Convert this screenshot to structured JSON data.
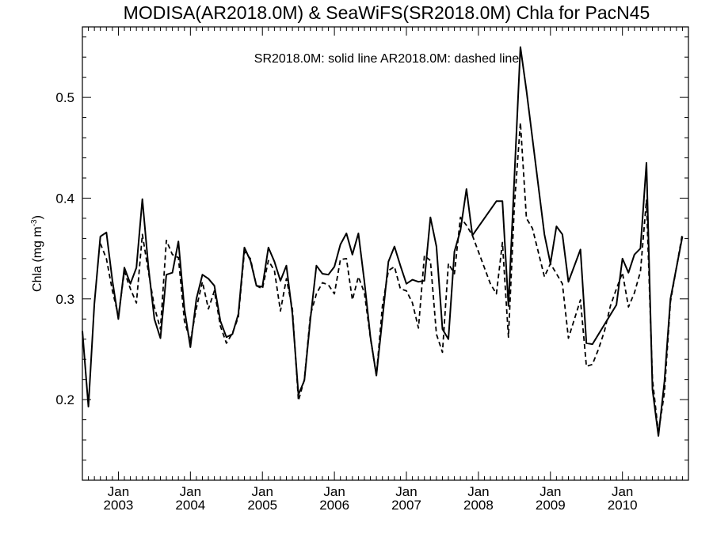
{
  "chart_data": {
    "type": "line",
    "title": "MODISA(AR2018.0M) & SeaWiFS(SR2018.0M)  Chla for PacN45",
    "annotation": "SR2018.0M: solid line   AR2018.0M: dashed line",
    "ylabel": "Chla (mg m",
    "ylabel_sup": "-3",
    "ylabel_close": ")",
    "xlim": [
      "2002-07-01",
      "2010-12-01"
    ],
    "ylim": [
      0.12,
      0.57
    ],
    "y_ticks": [
      0.2,
      0.3,
      0.4,
      0.5
    ],
    "y_tick_labels": [
      "0.2",
      "0.3",
      "0.4",
      "0.5"
    ],
    "x_major_ticks": [
      {
        "date": "2003-01-01",
        "month": "Jan",
        "year": "2003"
      },
      {
        "date": "2004-01-01",
        "month": "Jan",
        "year": "2004"
      },
      {
        "date": "2005-01-01",
        "month": "Jan",
        "year": "2005"
      },
      {
        "date": "2006-01-01",
        "month": "Jan",
        "year": "2006"
      },
      {
        "date": "2007-01-01",
        "month": "Jan",
        "year": "2007"
      },
      {
        "date": "2008-01-01",
        "month": "Jan",
        "year": "2008"
      },
      {
        "date": "2009-01-01",
        "month": "Jan",
        "year": "2009"
      },
      {
        "date": "2010-01-01",
        "month": "Jan",
        "year": "2010"
      }
    ],
    "series": [
      {
        "name": "SR2018.0M",
        "style": "solid",
        "color": "#000000",
        "points": [
          [
            "2002-07-01",
            0.268
          ],
          [
            "2002-08-01",
            0.193
          ],
          [
            "2002-09-01",
            0.295
          ],
          [
            "2002-10-01",
            0.362
          ],
          [
            "2002-11-01",
            0.366
          ],
          [
            "2002-12-01",
            0.318
          ],
          [
            "2003-01-01",
            0.28
          ],
          [
            "2003-02-01",
            0.331
          ],
          [
            "2003-03-01",
            0.315
          ],
          [
            "2003-04-01",
            0.331
          ],
          [
            "2003-05-01",
            0.399
          ],
          [
            "2003-06-01",
            0.332
          ],
          [
            "2003-07-01",
            0.28
          ],
          [
            "2003-08-01",
            0.261
          ],
          [
            "2003-09-01",
            0.324
          ],
          [
            "2003-10-01",
            0.326
          ],
          [
            "2003-11-01",
            0.357
          ],
          [
            "2003-12-01",
            0.29
          ],
          [
            "2004-01-01",
            0.252
          ],
          [
            "2004-02-01",
            0.3
          ],
          [
            "2004-03-01",
            0.324
          ],
          [
            "2004-04-01",
            0.32
          ],
          [
            "2004-05-01",
            0.313
          ],
          [
            "2004-06-01",
            0.278
          ],
          [
            "2004-07-01",
            0.262
          ],
          [
            "2004-08-01",
            0.265
          ],
          [
            "2004-09-01",
            0.285
          ],
          [
            "2004-10-01",
            0.351
          ],
          [
            "2004-11-01",
            0.338
          ],
          [
            "2004-12-01",
            0.313
          ],
          [
            "2005-01-01",
            0.312
          ],
          [
            "2005-02-01",
            0.351
          ],
          [
            "2005-03-01",
            0.337
          ],
          [
            "2005-04-01",
            0.318
          ],
          [
            "2005-05-01",
            0.333
          ],
          [
            "2005-06-01",
            0.285
          ],
          [
            "2005-07-01",
            0.205
          ],
          [
            "2005-08-01",
            0.219
          ],
          [
            "2005-09-01",
            0.28
          ],
          [
            "2005-10-01",
            0.333
          ],
          [
            "2005-11-01",
            0.325
          ],
          [
            "2005-12-01",
            0.324
          ],
          [
            "2006-01-01",
            0.332
          ],
          [
            "2006-02-01",
            0.354
          ],
          [
            "2006-03-01",
            0.365
          ],
          [
            "2006-04-01",
            0.344
          ],
          [
            "2006-05-01",
            0.365
          ],
          [
            "2006-06-01",
            0.317
          ],
          [
            "2006-07-01",
            0.262
          ],
          [
            "2006-08-01",
            0.224
          ],
          [
            "2006-09-01",
            0.28
          ],
          [
            "2006-10-01",
            0.337
          ],
          [
            "2006-11-01",
            0.352
          ],
          [
            "2006-12-01",
            0.333
          ],
          [
            "2007-01-01",
            0.315
          ],
          [
            "2007-02-01",
            0.319
          ],
          [
            "2007-03-01",
            0.317
          ],
          [
            "2007-04-01",
            0.318
          ],
          [
            "2007-05-01",
            0.381
          ],
          [
            "2007-06-01",
            0.352
          ],
          [
            "2007-07-01",
            0.27
          ],
          [
            "2007-08-01",
            0.26
          ],
          [
            "2007-09-01",
            0.347
          ],
          [
            "2007-10-01",
            0.368
          ],
          [
            "2007-11-01",
            0.409
          ],
          [
            "2007-12-01",
            0.363
          ],
          [
            "2008-04-01",
            0.397
          ],
          [
            "2008-05-01",
            0.397
          ],
          [
            "2008-06-01",
            0.293
          ],
          [
            "2008-08-01",
            0.55
          ],
          [
            "2008-09-01",
            0.507
          ],
          [
            "2008-12-01",
            0.364
          ],
          [
            "2009-01-01",
            0.335
          ],
          [
            "2009-02-01",
            0.372
          ],
          [
            "2009-03-01",
            0.364
          ],
          [
            "2009-04-01",
            0.317
          ],
          [
            "2009-06-01",
            0.349
          ],
          [
            "2009-07-01",
            0.256
          ],
          [
            "2009-08-01",
            0.255
          ],
          [
            "2009-12-01",
            0.294
          ],
          [
            "2010-01-01",
            0.34
          ],
          [
            "2010-02-01",
            0.326
          ],
          [
            "2010-03-01",
            0.344
          ],
          [
            "2010-04-01",
            0.35
          ],
          [
            "2010-05-01",
            0.435
          ],
          [
            "2010-06-01",
            0.21
          ],
          [
            "2010-07-01",
            0.164
          ],
          [
            "2010-08-01",
            0.218
          ],
          [
            "2010-09-01",
            0.3
          ],
          [
            "2010-11-01",
            0.362
          ]
        ]
      },
      {
        "name": "AR2018.0M",
        "style": "dashed",
        "color": "#000000",
        "points": [
          [
            "2002-10-01",
            0.355
          ],
          [
            "2002-11-01",
            0.34
          ],
          [
            "2002-12-01",
            0.308
          ],
          [
            "2003-01-01",
            0.283
          ],
          [
            "2003-02-01",
            0.327
          ],
          [
            "2003-03-01",
            0.31
          ],
          [
            "2003-04-01",
            0.296
          ],
          [
            "2003-05-01",
            0.364
          ],
          [
            "2003-06-01",
            0.327
          ],
          [
            "2003-07-01",
            0.292
          ],
          [
            "2003-08-01",
            0.27
          ],
          [
            "2003-09-01",
            0.358
          ],
          [
            "2003-10-01",
            0.344
          ],
          [
            "2003-11-01",
            0.341
          ],
          [
            "2003-12-01",
            0.278
          ],
          [
            "2004-01-01",
            0.258
          ],
          [
            "2004-02-01",
            0.291
          ],
          [
            "2004-03-01",
            0.317
          ],
          [
            "2004-04-01",
            0.29
          ],
          [
            "2004-05-01",
            0.308
          ],
          [
            "2004-06-01",
            0.273
          ],
          [
            "2004-07-01",
            0.256
          ],
          [
            "2004-08-01",
            0.266
          ],
          [
            "2004-09-01",
            0.282
          ],
          [
            "2004-10-01",
            0.347
          ],
          [
            "2004-11-01",
            0.34
          ],
          [
            "2004-12-01",
            0.313
          ],
          [
            "2005-01-01",
            0.31
          ],
          [
            "2005-02-01",
            0.338
          ],
          [
            "2005-03-01",
            0.328
          ],
          [
            "2005-04-01",
            0.288
          ],
          [
            "2005-05-01",
            0.32
          ],
          [
            "2005-06-01",
            0.29
          ],
          [
            "2005-07-01",
            0.199
          ],
          [
            "2005-08-01",
            0.22
          ],
          [
            "2005-09-01",
            0.284
          ],
          [
            "2005-10-01",
            0.305
          ],
          [
            "2005-11-01",
            0.316
          ],
          [
            "2005-12-01",
            0.314
          ],
          [
            "2006-01-01",
            0.305
          ],
          [
            "2006-02-01",
            0.339
          ],
          [
            "2006-03-01",
            0.34
          ],
          [
            "2006-04-01",
            0.299
          ],
          [
            "2006-05-01",
            0.322
          ],
          [
            "2006-06-01",
            0.306
          ],
          [
            "2006-07-01",
            0.261
          ],
          [
            "2006-08-01",
            0.224
          ],
          [
            "2006-09-01",
            0.293
          ],
          [
            "2006-10-01",
            0.328
          ],
          [
            "2006-11-01",
            0.332
          ],
          [
            "2006-12-01",
            0.31
          ],
          [
            "2007-01-01",
            0.308
          ],
          [
            "2007-02-01",
            0.296
          ],
          [
            "2007-03-01",
            0.271
          ],
          [
            "2007-04-01",
            0.343
          ],
          [
            "2007-05-01",
            0.338
          ],
          [
            "2007-06-01",
            0.265
          ],
          [
            "2007-07-01",
            0.247
          ],
          [
            "2007-08-01",
            0.335
          ],
          [
            "2007-09-01",
            0.325
          ],
          [
            "2007-10-01",
            0.381
          ],
          [
            "2007-11-01",
            0.373
          ],
          [
            "2007-12-01",
            0.363
          ],
          [
            "2008-03-01",
            0.315
          ],
          [
            "2008-04-01",
            0.305
          ],
          [
            "2008-05-01",
            0.356
          ],
          [
            "2008-06-01",
            0.262
          ],
          [
            "2008-07-01",
            0.393
          ],
          [
            "2008-08-01",
            0.475
          ],
          [
            "2008-09-01",
            0.38
          ],
          [
            "2008-10-01",
            0.37
          ],
          [
            "2008-12-01",
            0.322
          ],
          [
            "2009-01-01",
            0.335
          ],
          [
            "2009-02-01",
            0.325
          ],
          [
            "2009-03-01",
            0.315
          ],
          [
            "2009-04-01",
            0.261
          ],
          [
            "2009-05-01",
            0.28
          ],
          [
            "2009-06-01",
            0.299
          ],
          [
            "2009-07-01",
            0.233
          ],
          [
            "2009-08-01",
            0.235
          ],
          [
            "2009-09-01",
            0.25
          ],
          [
            "2009-10-01",
            0.268
          ],
          [
            "2009-11-01",
            0.293
          ],
          [
            "2009-12-01",
            0.31
          ],
          [
            "2010-01-01",
            0.326
          ],
          [
            "2010-02-01",
            0.292
          ],
          [
            "2010-03-01",
            0.306
          ],
          [
            "2010-04-01",
            0.327
          ],
          [
            "2010-05-01",
            0.398
          ],
          [
            "2010-06-01",
            0.22
          ],
          [
            "2010-07-01",
            0.167
          ],
          [
            "2010-08-01",
            0.207
          ],
          [
            "2010-09-01",
            0.297
          ],
          [
            "2010-11-01",
            0.365
          ]
        ]
      }
    ]
  }
}
